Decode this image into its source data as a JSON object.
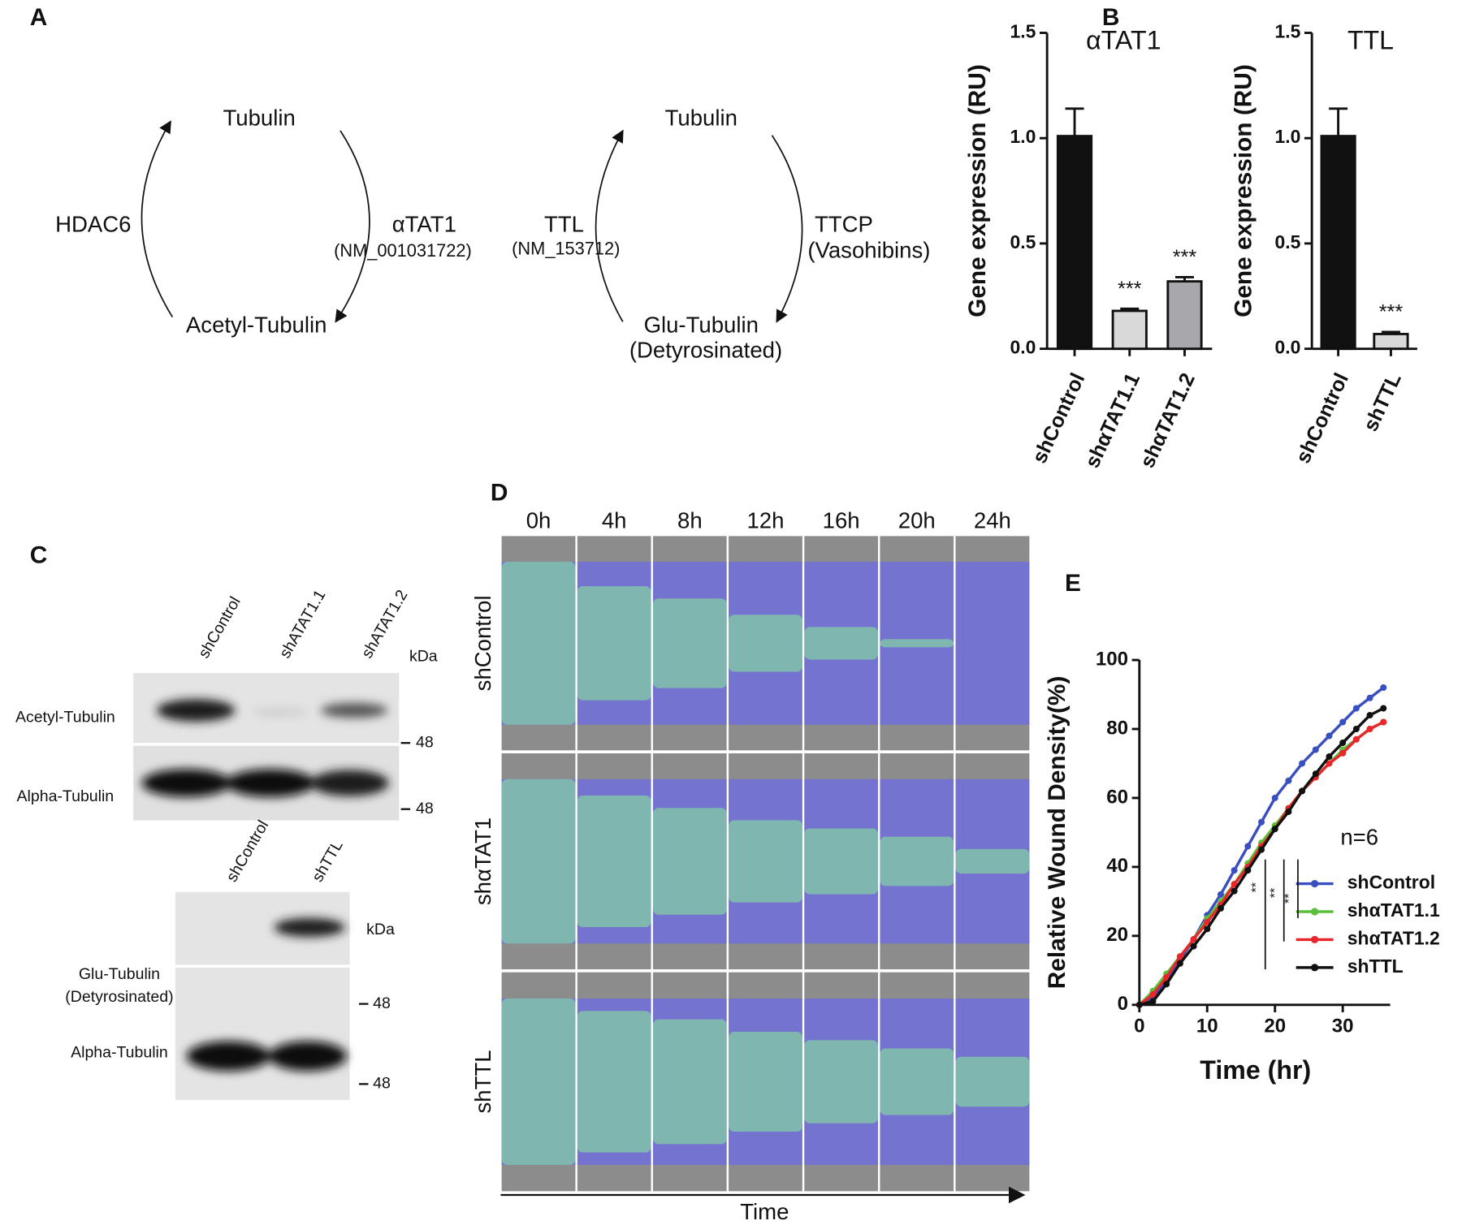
{
  "panel_labels": [
    "A",
    "B",
    "C",
    "D",
    "E"
  ],
  "diagram": {
    "left": {
      "top": "Tubulin",
      "bottom": "Acetyl-Tubulin",
      "left_enzyme": "HDAC6",
      "right_enzyme": "αTAT1",
      "right_enzyme_id": "(NM_001031722)"
    },
    "right": {
      "top": "Tubulin",
      "bottom": "Glu-Tubulin",
      "bottom_note": "(Detyrosinated)",
      "left_enzyme": "TTL",
      "left_enzyme_id": "(NM_153712)",
      "right_enzyme": "TTCP",
      "right_enzyme_note": "(Vasohibins)"
    }
  },
  "blots": {
    "top": {
      "lanes": [
        "shControl",
        "shATAT1.1",
        "shATAT1.2"
      ],
      "unit": "kDa",
      "rows": [
        "Acetyl-Tubulin",
        "Alpha-Tubulin"
      ],
      "markers": [
        "48",
        "48"
      ]
    },
    "bottom": {
      "lanes": [
        "shControl",
        "shTTL"
      ],
      "unit": "kDa",
      "rows": [
        "Glu-Tubulin",
        "(Detyrosinated)",
        "Alpha-Tubulin"
      ],
      "markers": [
        "48",
        "48"
      ]
    }
  },
  "timelapse": {
    "times": [
      "0h",
      "4h",
      "8h",
      "12h",
      "16h",
      "20h",
      "24h"
    ],
    "rows": [
      "shControl",
      "shαTAT1",
      "shTTL"
    ],
    "axis_label": "Time"
  },
  "chart_data": [
    {
      "type": "bar",
      "title": "αTAT1",
      "y_label": "Gene expression (RU)",
      "categories": [
        "shControl",
        "shαTAT1.1",
        "shαTAT1.2"
      ],
      "values": [
        1.01,
        0.18,
        0.32
      ],
      "errors": [
        0.13,
        0.01,
        0.02
      ],
      "significance": [
        null,
        "***",
        "***"
      ],
      "colors": [
        "#111111",
        "#d9d9d9",
        "#a8a8ac"
      ],
      "ylim": [
        0,
        1.5
      ],
      "yticks": [
        {
          "value": 0,
          "label": "0.0"
        },
        0.5,
        {
          "value": 1,
          "label": "1.0"
        },
        1.5
      ]
    },
    {
      "type": "bar",
      "title": "TTL",
      "y_label": "Gene expression (RU)",
      "categories": [
        "shControl",
        "shTTL"
      ],
      "values": [
        1.01,
        0.07
      ],
      "errors": [
        0.13,
        0.01
      ],
      "significance": [
        null,
        "***"
      ],
      "colors": [
        "#111111",
        "#d9d9d9"
      ],
      "ylim": [
        0,
        1.5
      ],
      "yticks": [
        {
          "value": 0,
          "label": "0.0"
        },
        0.5,
        {
          "value": 1,
          "label": "1.0"
        },
        1.5
      ]
    },
    {
      "type": "line",
      "x_label": "Time (hr)",
      "y_label": "Relative Wound Density(%)",
      "x": [
        0,
        2,
        4,
        6,
        8,
        10,
        12,
        14,
        16,
        18,
        20,
        22,
        24,
        26,
        28,
        30,
        32,
        34,
        36
      ],
      "series": [
        {
          "name": "shControl",
          "color": "#3a4fbf",
          "values": [
            0,
            2,
            7,
            13,
            19,
            26,
            32,
            39,
            46,
            53,
            60,
            65,
            70,
            74,
            78,
            82,
            86,
            89,
            92
          ]
        },
        {
          "name": "shαTAT1.1",
          "color": "#5cbf3a",
          "values": [
            0,
            4,
            9,
            14,
            19,
            25,
            30,
            35,
            41,
            47,
            52,
            57,
            62,
            66,
            70,
            74,
            77,
            80,
            82
          ]
        },
        {
          "name": "shαTAT1.2",
          "color": "#e8262b",
          "values": [
            0,
            3,
            8,
            14,
            19,
            24,
            29,
            35,
            40,
            46,
            51,
            57,
            62,
            66,
            70,
            73,
            77,
            80,
            82
          ]
        },
        {
          "name": "shTTL",
          "color": "#111111",
          "values": [
            0,
            1,
            6,
            12,
            17,
            22,
            28,
            33,
            39,
            45,
            51,
            56,
            62,
            67,
            72,
            76,
            80,
            84,
            86
          ]
        }
      ],
      "annotation": "n=6",
      "significance": [
        "**",
        "**",
        "**"
      ],
      "legend": "lower right",
      "xlim": [
        0,
        37
      ],
      "xticks": [
        0,
        10,
        20,
        30
      ],
      "ylim": [
        0,
        100
      ],
      "yticks": [
        0,
        20,
        40,
        60,
        80,
        100
      ]
    }
  ]
}
